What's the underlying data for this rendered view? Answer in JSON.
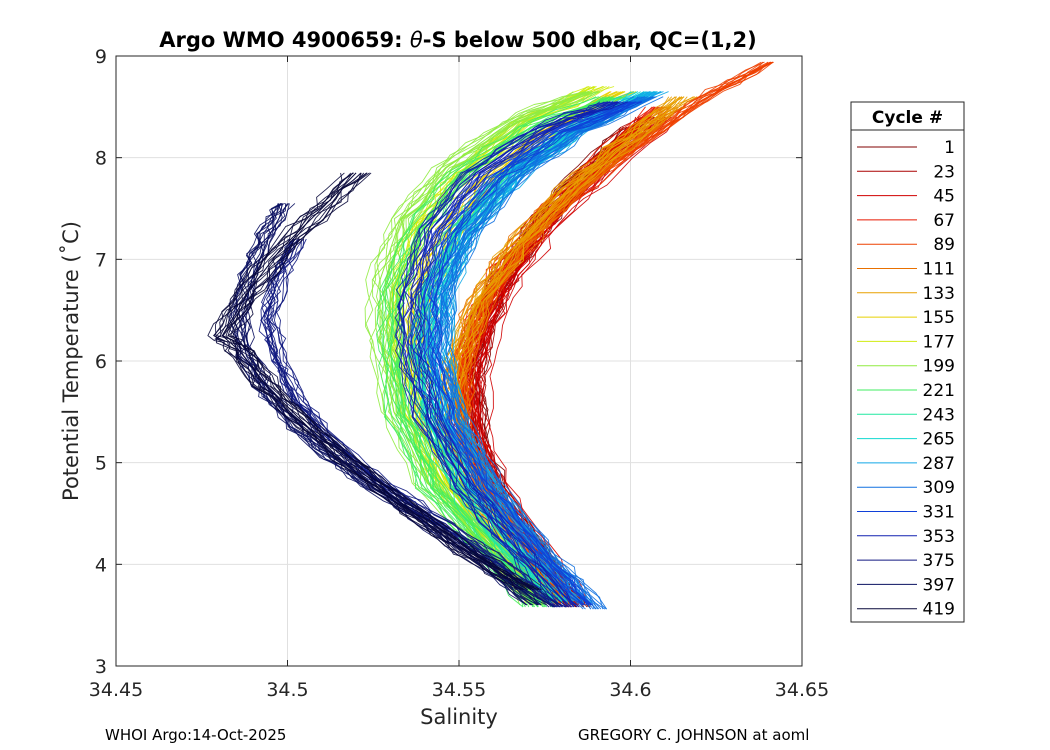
{
  "chart_data": {
    "type": "line",
    "title_prefix": "Argo WMO 4900659: ",
    "title_symbol": "θ",
    "title_suffix": "-S below 500 dbar,  QC=(1,2)",
    "xlabel": "Salinity",
    "ylabel": "Potential Temperature (˚C)",
    "xlim": [
      34.45,
      34.65
    ],
    "ylim": [
      3,
      9
    ],
    "xticks": [
      "34.45",
      "34.5",
      "34.55",
      "34.6",
      "34.65"
    ],
    "yticks": [
      "3",
      "4",
      "5",
      "6",
      "7",
      "8",
      "9"
    ],
    "grid": true,
    "legend_title": "Cycle #",
    "legend_position": "outside-right",
    "legend": [
      {
        "label": "1",
        "color": "#800000"
      },
      {
        "label": "23",
        "color": "#aa0000"
      },
      {
        "label": "45",
        "color": "#d00000"
      },
      {
        "label": "67",
        "color": "#e81800"
      },
      {
        "label": "89",
        "color": "#ee4000"
      },
      {
        "label": "111",
        "color": "#e87000"
      },
      {
        "label": "133",
        "color": "#e8a000"
      },
      {
        "label": "155",
        "color": "#e8d000"
      },
      {
        "label": "177",
        "color": "#d0ec10"
      },
      {
        "label": "199",
        "color": "#90ec40"
      },
      {
        "label": "221",
        "color": "#40ee60"
      },
      {
        "label": "243",
        "color": "#20e8a0"
      },
      {
        "label": "265",
        "color": "#10d8d0"
      },
      {
        "label": "287",
        "color": "#10a8e8"
      },
      {
        "label": "309",
        "color": "#1070e0"
      },
      {
        "label": "331",
        "color": "#1040d8"
      },
      {
        "label": "353",
        "color": "#1020b0"
      },
      {
        "label": "375",
        "color": "#101880"
      },
      {
        "label": "397",
        "color": "#0a1060"
      },
      {
        "label": "419",
        "color": "#08083a"
      }
    ],
    "series": [
      {
        "name": "1",
        "color": "#800000",
        "points": [
          [
            34.584,
            3.58
          ],
          [
            34.575,
            4.0
          ],
          [
            34.562,
            4.6
          ],
          [
            34.555,
            5.2
          ],
          [
            34.553,
            5.8
          ],
          [
            34.556,
            6.3
          ],
          [
            34.562,
            6.8
          ],
          [
            34.572,
            7.3
          ],
          [
            34.585,
            7.8
          ],
          [
            34.6,
            8.3
          ]
        ]
      },
      {
        "name": "23",
        "color": "#aa0000",
        "points": [
          [
            34.583,
            3.62
          ],
          [
            34.574,
            4.1
          ],
          [
            34.561,
            4.7
          ],
          [
            34.554,
            5.3
          ],
          [
            34.554,
            5.9
          ],
          [
            34.558,
            6.4
          ],
          [
            34.565,
            6.9
          ],
          [
            34.575,
            7.4
          ],
          [
            34.59,
            7.9
          ],
          [
            34.606,
            8.4
          ]
        ]
      },
      {
        "name": "45",
        "color": "#d00000",
        "points": [
          [
            34.585,
            3.6
          ],
          [
            34.576,
            4.05
          ],
          [
            34.563,
            4.65
          ],
          [
            34.556,
            5.25
          ],
          [
            34.555,
            5.85
          ],
          [
            34.559,
            6.35
          ],
          [
            34.566,
            6.85
          ],
          [
            34.577,
            7.35
          ],
          [
            34.592,
            7.85
          ],
          [
            34.61,
            8.4
          ]
        ]
      },
      {
        "name": "67",
        "color": "#e81800",
        "points": [
          [
            34.58,
            3.64
          ],
          [
            34.571,
            4.1
          ],
          [
            34.559,
            4.7
          ],
          [
            34.552,
            5.3
          ],
          [
            34.551,
            5.9
          ],
          [
            34.555,
            6.4
          ],
          [
            34.563,
            6.9
          ],
          [
            34.574,
            7.4
          ],
          [
            34.59,
            7.95
          ],
          [
            34.608,
            8.5
          ]
        ]
      },
      {
        "name": "89",
        "color": "#ee4000",
        "points": [
          [
            34.582,
            3.62
          ],
          [
            34.572,
            4.1
          ],
          [
            34.558,
            4.7
          ],
          [
            34.551,
            5.35
          ],
          [
            34.551,
            5.95
          ],
          [
            34.556,
            6.5
          ],
          [
            34.566,
            7.0
          ],
          [
            34.579,
            7.5
          ],
          [
            34.598,
            8.0
          ],
          [
            34.62,
            8.55
          ],
          [
            34.641,
            8.94
          ]
        ]
      },
      {
        "name": "111",
        "color": "#e87000",
        "points": [
          [
            34.578,
            3.6
          ],
          [
            34.568,
            4.1
          ],
          [
            34.555,
            4.75
          ],
          [
            34.549,
            5.4
          ],
          [
            34.55,
            6.0
          ],
          [
            34.556,
            6.6
          ],
          [
            34.566,
            7.1
          ],
          [
            34.58,
            7.6
          ],
          [
            34.597,
            8.1
          ],
          [
            34.612,
            8.5
          ]
        ]
      },
      {
        "name": "133",
        "color": "#e8a000",
        "points": [
          [
            34.576,
            3.62
          ],
          [
            34.566,
            4.1
          ],
          [
            34.553,
            4.75
          ],
          [
            34.547,
            5.4
          ],
          [
            34.549,
            6.0
          ],
          [
            34.556,
            6.6
          ],
          [
            34.567,
            7.15
          ],
          [
            34.582,
            7.7
          ],
          [
            34.6,
            8.2
          ],
          [
            34.615,
            8.6
          ]
        ]
      },
      {
        "name": "155",
        "color": "#e8d000",
        "points": [
          [
            34.575,
            3.65
          ],
          [
            34.563,
            4.15
          ],
          [
            34.549,
            4.8
          ],
          [
            34.541,
            5.45
          ],
          [
            34.538,
            6.1
          ],
          [
            34.54,
            6.7
          ],
          [
            34.548,
            7.3
          ],
          [
            34.56,
            7.8
          ],
          [
            34.578,
            8.3
          ],
          [
            34.598,
            8.65
          ]
        ]
      },
      {
        "name": "177",
        "color": "#d0ec10",
        "points": [
          [
            34.574,
            3.62
          ],
          [
            34.561,
            4.15
          ],
          [
            34.546,
            4.8
          ],
          [
            34.537,
            5.5
          ],
          [
            34.533,
            6.15
          ],
          [
            34.534,
            6.75
          ],
          [
            34.54,
            7.35
          ],
          [
            34.552,
            7.85
          ],
          [
            34.57,
            8.35
          ],
          [
            34.592,
            8.7
          ]
        ]
      },
      {
        "name": "199",
        "color": "#90ec40",
        "points": [
          [
            34.572,
            3.6
          ],
          [
            34.558,
            4.15
          ],
          [
            34.541,
            4.8
          ],
          [
            34.531,
            5.5
          ],
          [
            34.527,
            6.2
          ],
          [
            34.527,
            6.8
          ],
          [
            34.533,
            7.4
          ],
          [
            34.546,
            7.9
          ],
          [
            34.565,
            8.35
          ],
          [
            34.588,
            8.65
          ]
        ]
      },
      {
        "name": "221",
        "color": "#40ee60",
        "points": [
          [
            34.573,
            3.58
          ],
          [
            34.559,
            4.1
          ],
          [
            34.542,
            4.75
          ],
          [
            34.533,
            5.45
          ],
          [
            34.53,
            6.1
          ],
          [
            34.531,
            6.7
          ],
          [
            34.538,
            7.3
          ],
          [
            34.551,
            7.85
          ],
          [
            34.571,
            8.3
          ],
          [
            34.594,
            8.6
          ]
        ]
      },
      {
        "name": "243",
        "color": "#20e8a0",
        "points": [
          [
            34.578,
            3.62
          ],
          [
            34.565,
            4.1
          ],
          [
            34.55,
            4.75
          ],
          [
            34.541,
            5.4
          ],
          [
            34.538,
            6.05
          ],
          [
            34.541,
            6.65
          ],
          [
            34.549,
            7.25
          ],
          [
            34.563,
            7.8
          ],
          [
            34.582,
            8.25
          ],
          [
            34.603,
            8.6
          ]
        ]
      },
      {
        "name": "265",
        "color": "#10d8d0",
        "points": [
          [
            34.58,
            3.64
          ],
          [
            34.567,
            4.15
          ],
          [
            34.552,
            4.8
          ],
          [
            34.543,
            5.45
          ],
          [
            34.54,
            6.1
          ],
          [
            34.543,
            6.7
          ],
          [
            34.551,
            7.3
          ],
          [
            34.565,
            7.85
          ],
          [
            34.584,
            8.3
          ],
          [
            34.604,
            8.65
          ]
        ]
      },
      {
        "name": "287",
        "color": "#10a8e8",
        "points": [
          [
            34.585,
            3.62
          ],
          [
            34.572,
            4.15
          ],
          [
            34.558,
            4.8
          ],
          [
            34.548,
            5.45
          ],
          [
            34.544,
            6.1
          ],
          [
            34.546,
            6.7
          ],
          [
            34.553,
            7.3
          ],
          [
            34.567,
            7.85
          ],
          [
            34.586,
            8.3
          ],
          [
            34.607,
            8.65
          ]
        ]
      },
      {
        "name": "309",
        "color": "#1070e0",
        "points": [
          [
            34.59,
            3.56
          ],
          [
            34.575,
            4.1
          ],
          [
            34.56,
            4.75
          ],
          [
            34.549,
            5.4
          ],
          [
            34.544,
            6.05
          ],
          [
            34.545,
            6.65
          ],
          [
            34.552,
            7.25
          ],
          [
            34.565,
            7.8
          ],
          [
            34.584,
            8.25
          ],
          [
            34.605,
            8.6
          ]
        ]
      },
      {
        "name": "331",
        "color": "#1040d8",
        "points": [
          [
            34.586,
            3.6
          ],
          [
            34.572,
            4.1
          ],
          [
            34.556,
            4.75
          ],
          [
            34.545,
            5.4
          ],
          [
            34.54,
            6.05
          ],
          [
            34.54,
            6.65
          ],
          [
            34.546,
            7.25
          ],
          [
            34.559,
            7.8
          ],
          [
            34.578,
            8.25
          ],
          [
            34.6,
            8.55
          ]
        ]
      },
      {
        "name": "353",
        "color": "#1020b0",
        "points": [
          [
            34.582,
            3.58
          ],
          [
            34.568,
            4.1
          ],
          [
            34.552,
            4.75
          ],
          [
            34.541,
            5.45
          ],
          [
            34.536,
            6.1
          ],
          [
            34.536,
            6.7
          ],
          [
            34.542,
            7.3
          ],
          [
            34.555,
            7.85
          ],
          [
            34.575,
            8.3
          ],
          [
            34.596,
            8.55
          ]
        ]
      },
      {
        "name": "375",
        "color": "#101880",
        "points": [
          [
            34.578,
            3.58
          ],
          [
            34.562,
            4.0
          ],
          [
            34.545,
            4.4
          ],
          [
            34.527,
            4.8
          ],
          [
            34.513,
            5.2
          ],
          [
            34.503,
            5.6
          ],
          [
            34.497,
            6.0
          ],
          [
            34.494,
            6.4
          ],
          [
            34.497,
            6.8
          ],
          [
            34.502,
            7.2
          ]
        ]
      },
      {
        "name": "397",
        "color": "#0a1060",
        "points": [
          [
            34.574,
            3.6
          ],
          [
            34.557,
            4.05
          ],
          [
            34.54,
            4.45
          ],
          [
            34.522,
            4.85
          ],
          [
            34.507,
            5.25
          ],
          [
            34.496,
            5.65
          ],
          [
            34.489,
            6.05
          ],
          [
            34.487,
            6.45
          ],
          [
            34.49,
            6.85
          ],
          [
            34.495,
            7.25
          ],
          [
            34.5,
            7.55
          ]
        ]
      },
      {
        "name": "419",
        "color": "#08083a",
        "points": [
          [
            34.57,
            3.75
          ],
          [
            34.553,
            4.1
          ],
          [
            34.537,
            4.5
          ],
          [
            34.52,
            4.95
          ],
          [
            34.506,
            5.35
          ],
          [
            34.494,
            5.75
          ],
          [
            34.486,
            6.1
          ],
          [
            34.481,
            6.25
          ],
          [
            34.489,
            6.7
          ],
          [
            34.498,
            7.1
          ],
          [
            34.51,
            7.5
          ],
          [
            34.52,
            7.85
          ]
        ]
      }
    ]
  },
  "footer": {
    "left": "WHOI Argo:14-Oct-2025",
    "right": "GREGORY C. JOHNSON at aoml"
  }
}
